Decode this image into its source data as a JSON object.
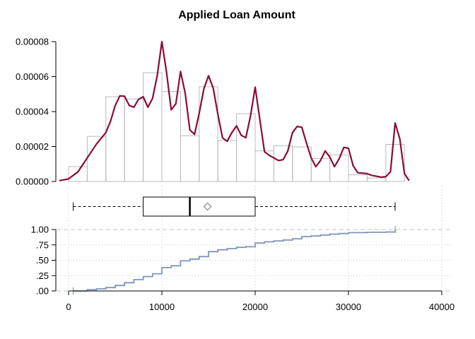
{
  "chart_data": {
    "type": "histogram-density-boxplot-ecdf",
    "title": "Applied Loan Amount",
    "colors": {
      "density": "#8b0a3a",
      "bars": "#b8b8b8",
      "ecdf": "#7f95b8",
      "grid": "#c4c4c4"
    },
    "density_panel": {
      "ylim": [
        0,
        8e-05
      ],
      "y_ticks": [
        0,
        2e-05,
        4e-05,
        6e-05,
        8e-05
      ],
      "y_tick_labels": [
        "0.00000",
        "0.00002",
        "0.00004",
        "0.00006",
        "0.00008"
      ],
      "histogram": {
        "bin_width": 2000,
        "bins": [
          {
            "x0": 0,
            "x1": 2000,
            "density": 8.5e-06
          },
          {
            "x0": 2000,
            "x1": 4000,
            "density": 2.58e-05
          },
          {
            "x0": 4000,
            "x1": 6000,
            "density": 4.85e-05
          },
          {
            "x0": 6000,
            "x1": 8000,
            "density": 4.72e-05
          },
          {
            "x0": 8000,
            "x1": 10000,
            "density": 6.22e-05
          },
          {
            "x0": 10000,
            "x1": 12000,
            "density": 5.15e-05
          },
          {
            "x0": 12000,
            "x1": 14000,
            "density": 2.62e-05
          },
          {
            "x0": 14000,
            "x1": 16000,
            "density": 5.42e-05
          },
          {
            "x0": 16000,
            "x1": 18000,
            "density": 2.35e-05
          },
          {
            "x0": 18000,
            "x1": 20000,
            "density": 3.88e-05
          },
          {
            "x0": 20000,
            "x1": 22000,
            "density": 1.75e-05
          },
          {
            "x0": 22000,
            "x1": 24000,
            "density": 2.05e-05
          },
          {
            "x0": 24000,
            "x1": 26000,
            "density": 1.98e-05
          },
          {
            "x0": 26000,
            "x1": 28000,
            "density": 1.32e-05
          },
          {
            "x0": 28000,
            "x1": 30000,
            "density": 1.52e-05
          },
          {
            "x0": 30000,
            "x1": 32000,
            "density": 3.8e-06
          },
          {
            "x0": 32000,
            "x1": 34000,
            "density": 2e-06
          },
          {
            "x0": 34000,
            "x1": 36000,
            "density": 2.12e-05
          }
        ]
      },
      "density_curve": {
        "x": [
          -1000,
          0,
          1000,
          2000,
          3000,
          4000,
          4500,
          5000,
          5500,
          6000,
          6500,
          7000,
          7500,
          8000,
          8500,
          9000,
          9500,
          10000,
          10500,
          11000,
          11500,
          12000,
          12500,
          13000,
          13500,
          14000,
          14500,
          15000,
          15500,
          16000,
          16500,
          17000,
          17500,
          18000,
          18500,
          19000,
          19500,
          20000,
          20500,
          21000,
          21500,
          22000,
          22500,
          23000,
          23500,
          24000,
          24500,
          25000,
          25500,
          26000,
          26500,
          27000,
          27500,
          28000,
          28500,
          29000,
          29500,
          30000,
          30500,
          31000,
          31500,
          32000,
          32500,
          33000,
          33500,
          34000,
          34500,
          35000,
          35500,
          36000,
          36500
        ],
        "y": [
          5e-07,
          1.5e-06,
          5.5e-06,
          1.35e-05,
          2.15e-05,
          2.8e-05,
          3.45e-05,
          4.35e-05,
          4.9e-05,
          4.88e-05,
          4.35e-05,
          4.25e-05,
          4.7e-05,
          4.85e-05,
          4.25e-05,
          4.75e-05,
          6.05e-05,
          8e-05,
          6.25e-05,
          4.1e-05,
          4.45e-05,
          6.3e-05,
          5.05e-05,
          2.95e-05,
          2.7e-05,
          3.9e-05,
          5.3e-05,
          6.05e-05,
          5.35e-05,
          3.85e-05,
          2.5e-05,
          2.3e-05,
          2.8e-05,
          3.18e-05,
          2.65e-05,
          2.5e-05,
          3.75e-05,
          5.4e-05,
          3.55e-05,
          1.7e-05,
          1.5e-05,
          1.35e-05,
          1.2e-05,
          1.25e-05,
          1.75e-05,
          2.8e-05,
          3.15e-05,
          3.1e-05,
          2.2e-05,
          1.35e-05,
          8.5e-06,
          1.2e-05,
          1.75e-05,
          1.4e-05,
          8.5e-06,
          1.3e-05,
          1.95e-05,
          1.9e-05,
          9e-06,
          5e-06,
          4.8e-06,
          4.5e-06,
          3.5e-06,
          3e-06,
          2.5e-06,
          2.8e-06,
          5.5e-06,
          3.35e-05,
          2.45e-05,
          4.5e-06,
          5e-07
        ]
      }
    },
    "boxplot": {
      "whisker_low": 500,
      "q1": 8000,
      "median": 13000,
      "mean": 14900,
      "q3": 20000,
      "whisker_high": 35000
    },
    "ecdf_panel": {
      "ylim": [
        0,
        1
      ],
      "y_ticks": [
        0,
        0.25,
        0.5,
        0.75,
        1
      ],
      "y_tick_labels": [
        ".00",
        ".25",
        ".50",
        ".75",
        "1.00"
      ],
      "points": [
        {
          "x": 500,
          "y": 0.0
        },
        {
          "x": 2000,
          "y": 0.02
        },
        {
          "x": 3000,
          "y": 0.035
        },
        {
          "x": 4000,
          "y": 0.055
        },
        {
          "x": 5000,
          "y": 0.09
        },
        {
          "x": 6000,
          "y": 0.135
        },
        {
          "x": 7000,
          "y": 0.185
        },
        {
          "x": 8000,
          "y": 0.235
        },
        {
          "x": 9000,
          "y": 0.28
        },
        {
          "x": 10000,
          "y": 0.38
        },
        {
          "x": 11000,
          "y": 0.41
        },
        {
          "x": 12000,
          "y": 0.49
        },
        {
          "x": 13000,
          "y": 0.52
        },
        {
          "x": 14000,
          "y": 0.56
        },
        {
          "x": 15000,
          "y": 0.64
        },
        {
          "x": 16000,
          "y": 0.67
        },
        {
          "x": 17000,
          "y": 0.69
        },
        {
          "x": 18000,
          "y": 0.71
        },
        {
          "x": 19000,
          "y": 0.72
        },
        {
          "x": 20000,
          "y": 0.78
        },
        {
          "x": 21000,
          "y": 0.8
        },
        {
          "x": 22000,
          "y": 0.815
        },
        {
          "x": 23000,
          "y": 0.83
        },
        {
          "x": 24000,
          "y": 0.85
        },
        {
          "x": 25000,
          "y": 0.885
        },
        {
          "x": 26000,
          "y": 0.895
        },
        {
          "x": 27000,
          "y": 0.91
        },
        {
          "x": 28000,
          "y": 0.925
        },
        {
          "x": 29000,
          "y": 0.935
        },
        {
          "x": 30000,
          "y": 0.95
        },
        {
          "x": 32000,
          "y": 0.955
        },
        {
          "x": 34000,
          "y": 0.96
        },
        {
          "x": 35000,
          "y": 1.0
        }
      ]
    },
    "x_axis": {
      "xlim": [
        0,
        40000
      ],
      "ticks": [
        0,
        10000,
        20000,
        30000,
        40000
      ],
      "tick_labels": [
        "0",
        "10000",
        "20000",
        "30000",
        "40000"
      ]
    },
    "grid": true
  }
}
